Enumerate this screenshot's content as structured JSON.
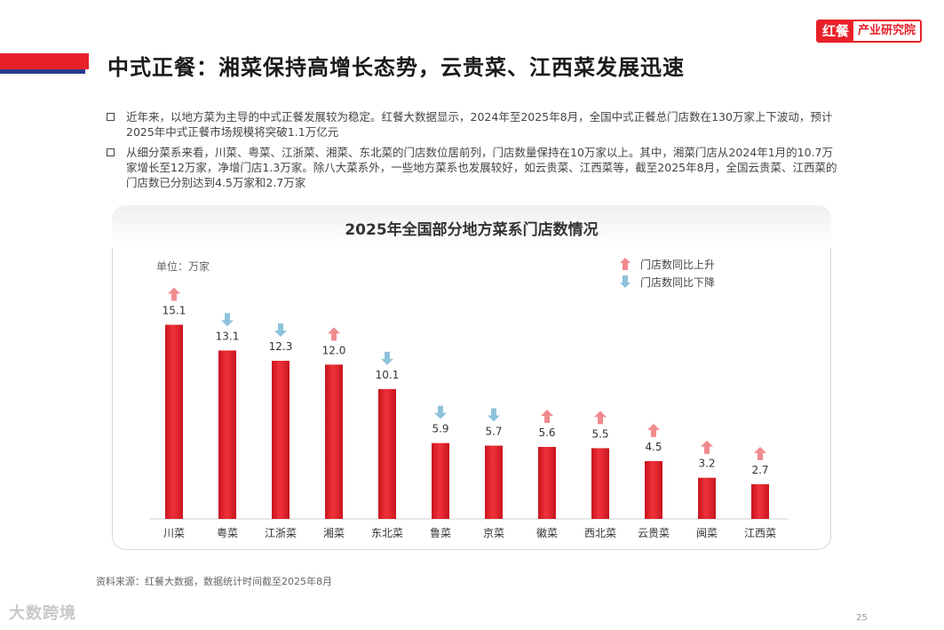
{
  "header": {
    "title": "中式正餐：湘菜保持高增长态势，云贵菜、江西菜发展迅速",
    "logo_mark": "红餐",
    "logo_text": "产业研究院"
  },
  "bullets": [
    "近年来，以地方菜为主导的中式正餐发展较为稳定。红餐大数据显示，2024年至2025年8月，全国中式正餐总门店数在130万家上下波动，预计2025年中式正餐市场规模将突破1.1万亿元",
    "从细分菜系来看，川菜、粤菜、江浙菜、湘菜、东北菜的门店数位居前列，门店数量保持在10万家以上。其中，湘菜门店从2024年1月的10.7万家增长至12万家，净增门店1.3万家。除八大菜系外，一些地方菜系也发展较好，如云贵菜、江西菜等，截至2025年8月，全国云贵菜、江西菜的门店数已分别达到4.5万家和2.7万家"
  ],
  "chart_data": {
    "type": "bar",
    "title": "2025年全国部分地方菜系门店数情况",
    "unit_label": "单位：万家",
    "categories": [
      "川菜",
      "粤菜",
      "江浙菜",
      "湘菜",
      "东北菜",
      "鲁菜",
      "京菜",
      "徽菜",
      "西北菜",
      "云贵菜",
      "闽菜",
      "江西菜"
    ],
    "values": [
      15.1,
      13.1,
      12.3,
      12.0,
      10.1,
      5.9,
      5.7,
      5.6,
      5.5,
      4.5,
      3.2,
      2.7
    ],
    "value_labels": [
      "15.1",
      "13.1",
      "12.3",
      "12.0",
      "10.1",
      "5.9",
      "5.7",
      "5.6",
      "5.5",
      "4.5",
      "3.2",
      "2.7"
    ],
    "trend": [
      "up",
      "down",
      "down",
      "up",
      "down",
      "down",
      "down",
      "up",
      "up",
      "up",
      "up",
      "up"
    ],
    "ylim": [
      0,
      17
    ],
    "grid": false,
    "legend": [
      {
        "direction": "up",
        "label": "门店数同比上升"
      },
      {
        "direction": "down",
        "label": "门店数同比下降"
      }
    ],
    "legend_position": "top-right",
    "colors": {
      "bar": "#e8202a",
      "up_arrow": "#f08a8e",
      "down_arrow": "#8fc3dc"
    }
  },
  "footer": {
    "source": "资料来源：红餐大数据，数据统计时间截至2025年8月",
    "page": "25",
    "watermark": "大数跨境"
  }
}
